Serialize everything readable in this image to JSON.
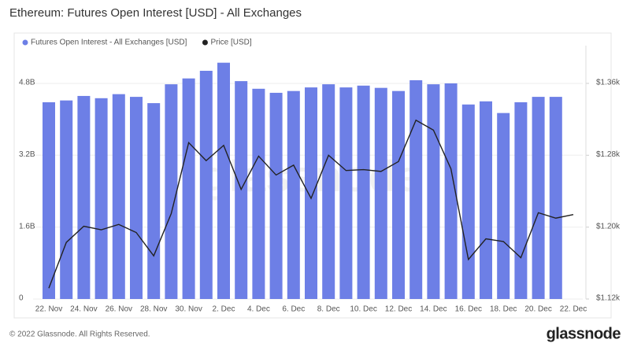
{
  "chart_data": {
    "type": "bar",
    "title": "Ethereum: Futures Open Interest [USD] - All Exchanges",
    "watermark": "glassnode",
    "footer": "© 2022 Glassnode. All Rights Reserved.",
    "logo": "glassnode",
    "categories": [
      "22. Nov",
      null,
      "24. Nov",
      null,
      "26. Nov",
      null,
      "28. Nov",
      null,
      "30. Nov",
      null,
      "2. Dec",
      null,
      "4. Dec",
      null,
      "6. Dec",
      null,
      "8. Dec",
      null,
      "10. Dec",
      null,
      "12. Dec",
      null,
      "14. Dec",
      null,
      "16. Dec",
      null,
      "18. Dec",
      null,
      "20. Dec",
      null,
      "22. Dec"
    ],
    "series": [
      {
        "name": "Futures Open Interest - All Exchanges [USD]",
        "type": "bar",
        "color": "#6d7fe6",
        "values": [
          4380000000,
          4420000000,
          4520000000,
          4470000000,
          4560000000,
          4500000000,
          4360000000,
          4780000000,
          4910000000,
          5080000000,
          5260000000,
          4850000000,
          4680000000,
          4590000000,
          4630000000,
          4710000000,
          4780000000,
          4710000000,
          4750000000,
          4700000000,
          4630000000,
          4870000000,
          4780000000,
          4800000000,
          4330000000,
          4400000000,
          4140000000,
          4380000000,
          4500000000,
          4500000000,
          null
        ]
      },
      {
        "name": "Price [USD]",
        "type": "line",
        "color": "#222222",
        "axis": "y2",
        "values": [
          1132,
          1183,
          1201,
          1197,
          1203,
          1194,
          1168,
          1215,
          1294,
          1274,
          1291,
          1242,
          1279,
          1258,
          1269,
          1232,
          1280,
          1263,
          1264,
          1262,
          1273,
          1319,
          1308,
          1265,
          1164,
          1187,
          1184,
          1166,
          1216,
          1210,
          1214
        ]
      }
    ],
    "ylim": [
      0,
      5640000000
    ],
    "yticks": [
      0,
      {
        "value": 1600000000,
        "label": "1.6B"
      },
      {
        "value": 3200000000,
        "label": "3.2B"
      },
      {
        "value": 4800000000,
        "label": "4.8B"
      }
    ],
    "y2lim": [
      1120,
      1402
    ],
    "y2ticks": [
      {
        "value": 1120,
        "label": "$1.12k"
      },
      {
        "value": 1200,
        "label": "$1.20k"
      },
      {
        "value": 1280,
        "label": "$1.28k"
      },
      {
        "value": 1360,
        "label": "$1.36k"
      }
    ],
    "grid": true
  }
}
